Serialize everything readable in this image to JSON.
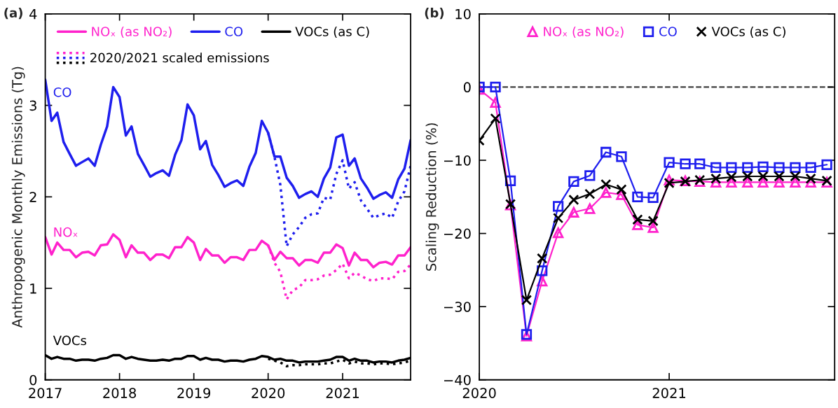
{
  "chart_data": [
    {
      "type": "line",
      "title": "(a)",
      "ylabel": "Anthropogenic Monthly Emissions (Tg)",
      "x": [
        "2017-01",
        "2017-02",
        "2017-03",
        "2017-04",
        "2017-05",
        "2017-06",
        "2017-07",
        "2017-08",
        "2017-09",
        "2017-10",
        "2017-11",
        "2017-12",
        "2018-01",
        "2018-02",
        "2018-03",
        "2018-04",
        "2018-05",
        "2018-06",
        "2018-07",
        "2018-08",
        "2018-09",
        "2018-10",
        "2018-11",
        "2018-12",
        "2019-01",
        "2019-02",
        "2019-03",
        "2019-04",
        "2019-05",
        "2019-06",
        "2019-07",
        "2019-08",
        "2019-09",
        "2019-10",
        "2019-11",
        "2019-12",
        "2020-01",
        "2020-02",
        "2020-03",
        "2020-04",
        "2020-05",
        "2020-06",
        "2020-07",
        "2020-08",
        "2020-09",
        "2020-10",
        "2020-11",
        "2020-12",
        "2021-01",
        "2021-02",
        "2021-03",
        "2021-04",
        "2021-05",
        "2021-06",
        "2021-07",
        "2021-08",
        "2021-09",
        "2021-10",
        "2021-11",
        "2021-12"
      ],
      "xlim": [
        "2017-01",
        "2021-12"
      ],
      "xticks": [
        {
          "value": "2017",
          "label": "2017"
        },
        {
          "value": "2018",
          "label": "2018"
        },
        {
          "value": "2019",
          "label": "2019"
        },
        {
          "value": "2020",
          "label": "2020"
        },
        {
          "value": "2021",
          "label": "2021"
        }
      ],
      "ylim": [
        0,
        4
      ],
      "yticks": [
        0,
        1,
        2,
        3,
        4
      ],
      "legend": "top left",
      "series": [
        {
          "name": "NOₓ (as NO₂)",
          "color": "#ff22cc",
          "line_style": "solid",
          "values": [
            1.56,
            1.37,
            1.5,
            1.42,
            1.42,
            1.34,
            1.39,
            1.4,
            1.36,
            1.47,
            1.48,
            1.59,
            1.53,
            1.34,
            1.47,
            1.39,
            1.39,
            1.31,
            1.37,
            1.37,
            1.33,
            1.45,
            1.45,
            1.56,
            1.5,
            1.31,
            1.43,
            1.36,
            1.36,
            1.28,
            1.34,
            1.34,
            1.31,
            1.42,
            1.42,
            1.52,
            1.47,
            1.31,
            1.4,
            1.33,
            1.33,
            1.25,
            1.31,
            1.31,
            1.28,
            1.39,
            1.39,
            1.48,
            1.44,
            1.25,
            1.39,
            1.31,
            1.31,
            1.23,
            1.28,
            1.29,
            1.26,
            1.36,
            1.36,
            1.45
          ]
        },
        {
          "name": "CO",
          "color": "#1e1eee",
          "line_style": "solid",
          "values": [
            3.28,
            2.83,
            2.92,
            2.6,
            2.47,
            2.34,
            2.38,
            2.42,
            2.34,
            2.57,
            2.77,
            3.2,
            3.09,
            2.67,
            2.77,
            2.47,
            2.35,
            2.22,
            2.26,
            2.29,
            2.23,
            2.46,
            2.62,
            3.01,
            2.89,
            2.52,
            2.61,
            2.35,
            2.24,
            2.11,
            2.15,
            2.18,
            2.12,
            2.33,
            2.48,
            2.83,
            2.7,
            2.44,
            2.44,
            2.21,
            2.12,
            1.99,
            2.03,
            2.06,
            2.0,
            2.2,
            2.32,
            2.65,
            2.68,
            2.34,
            2.42,
            2.2,
            2.1,
            1.98,
            2.02,
            2.05,
            1.99,
            2.19,
            2.31,
            2.62
          ]
        },
        {
          "name": "VOCs (as C)",
          "color": "#000000",
          "line_style": "solid",
          "values": [
            0.27,
            0.23,
            0.25,
            0.23,
            0.23,
            0.21,
            0.22,
            0.22,
            0.21,
            0.23,
            0.24,
            0.27,
            0.27,
            0.23,
            0.25,
            0.23,
            0.22,
            0.21,
            0.21,
            0.22,
            0.21,
            0.23,
            0.23,
            0.26,
            0.26,
            0.22,
            0.24,
            0.22,
            0.22,
            0.2,
            0.21,
            0.21,
            0.2,
            0.22,
            0.23,
            0.26,
            0.25,
            0.22,
            0.23,
            0.21,
            0.21,
            0.19,
            0.2,
            0.2,
            0.2,
            0.21,
            0.22,
            0.25,
            0.25,
            0.21,
            0.23,
            0.21,
            0.21,
            0.19,
            0.2,
            0.2,
            0.19,
            0.21,
            0.22,
            0.24
          ]
        },
        {
          "name": "2020/2021 scaled emissions",
          "color": "#ff22cc",
          "line_style": "dotted",
          "x": [
            "2020-01",
            "2020-02",
            "2020-03",
            "2020-04",
            "2020-05",
            "2020-06",
            "2020-07",
            "2020-08",
            "2020-09",
            "2020-10",
            "2020-11",
            "2020-12",
            "2021-01",
            "2021-02",
            "2021-03",
            "2021-04",
            "2021-05",
            "2021-06",
            "2021-07",
            "2021-08",
            "2021-09",
            "2021-10",
            "2021-11",
            "2021-12"
          ],
          "values": [
            1.47,
            1.28,
            1.18,
            0.88,
            0.98,
            1.01,
            1.09,
            1.09,
            1.1,
            1.14,
            1.15,
            1.2,
            1.27,
            1.11,
            1.17,
            1.14,
            1.1,
            1.08,
            1.11,
            1.11,
            1.1,
            1.18,
            1.19,
            1.26
          ]
        },
        {
          "color": "#1e1eee",
          "line_style": "dotted",
          "x": [
            "2020-01",
            "2020-02",
            "2020-03",
            "2020-04",
            "2020-05",
            "2020-06",
            "2020-07",
            "2020-08",
            "2020-09",
            "2020-10",
            "2020-11",
            "2020-12",
            "2021-01",
            "2021-02",
            "2021-03",
            "2021-04",
            "2021-05",
            "2021-06",
            "2021-07",
            "2021-08",
            "2021-09",
            "2021-10",
            "2021-11",
            "2021-12"
          ],
          "values": [
            2.7,
            2.44,
            2.13,
            1.46,
            1.59,
            1.67,
            1.77,
            1.81,
            1.82,
            1.99,
            1.97,
            2.25,
            2.4,
            2.09,
            2.16,
            1.96,
            1.87,
            1.77,
            1.8,
            1.82,
            1.77,
            1.95,
            2.06,
            2.34
          ]
        },
        {
          "color": "#000000",
          "line_style": "dotted",
          "x": [
            "2020-01",
            "2020-02",
            "2020-03",
            "2020-04",
            "2020-05",
            "2020-06",
            "2020-07",
            "2020-08",
            "2020-09",
            "2020-10",
            "2020-11",
            "2020-12",
            "2021-01",
            "2021-02",
            "2021-03",
            "2021-04",
            "2021-05",
            "2021-06",
            "2021-07",
            "2021-08",
            "2021-09",
            "2021-10",
            "2021-11",
            "2021-12"
          ],
          "values": [
            0.23,
            0.21,
            0.19,
            0.15,
            0.16,
            0.16,
            0.17,
            0.17,
            0.17,
            0.18,
            0.18,
            0.2,
            0.22,
            0.18,
            0.2,
            0.18,
            0.18,
            0.17,
            0.18,
            0.18,
            0.17,
            0.18,
            0.19,
            0.21
          ]
        }
      ],
      "annotations": [
        "NOₓ",
        "CO",
        "VOCs"
      ]
    },
    {
      "type": "line",
      "title": "(b)",
      "ylabel": "Scaling Reduction (%)",
      "x": [
        "2020-01",
        "2020-02",
        "2020-03",
        "2020-04",
        "2020-05",
        "2020-06",
        "2020-07",
        "2020-08",
        "2020-09",
        "2020-10",
        "2020-11",
        "2020-12",
        "2021-01",
        "2021-02",
        "2021-03",
        "2021-04",
        "2021-05",
        "2021-06",
        "2021-07",
        "2021-08",
        "2021-09",
        "2021-10",
        "2021-11"
      ],
      "xlim": [
        "2020-01",
        "2021-11-16"
      ],
      "xticks": [
        {
          "value": "2020",
          "label": "2020"
        },
        {
          "value": "2021",
          "label": "2021"
        }
      ],
      "ylim": [
        -40,
        10
      ],
      "yticks": [
        -40,
        -30,
        -20,
        -10,
        0,
        10
      ],
      "legend": "top",
      "ref_lines": [
        {
          "axis": "y",
          "value": 0,
          "line_style": "dashed",
          "color": "#404040"
        }
      ],
      "series": [
        {
          "name": "NOₓ (as NO₂)",
          "color": "#ff22cc",
          "marker": "triangle",
          "line_style": "solid",
          "values": [
            -0.3,
            -2.1,
            -16.1,
            -34.0,
            -26.5,
            -19.9,
            -17.1,
            -16.6,
            -14.4,
            -14.7,
            -18.8,
            -19.2,
            -12.7,
            -12.8,
            -12.9,
            -13.0,
            -13.0,
            -13.0,
            -13.0,
            -13.0,
            -13.0,
            -13.0,
            -13.0
          ]
        },
        {
          "name": "CO",
          "color": "#1e1eee",
          "marker": "square",
          "line_style": "solid",
          "values": [
            0.0,
            0.0,
            -12.8,
            -33.8,
            -25.1,
            -16.3,
            -12.9,
            -12.1,
            -8.9,
            -9.5,
            -15.0,
            -15.1,
            -10.3,
            -10.5,
            -10.5,
            -11.0,
            -11.0,
            -11.0,
            -10.9,
            -11.0,
            -11.0,
            -11.0,
            -10.6
          ]
        },
        {
          "name": "VOCs (as C)",
          "color": "#000000",
          "marker": "cross",
          "line_style": "solid",
          "values": [
            -7.3,
            -4.3,
            -16.0,
            -29.1,
            -23.4,
            -17.9,
            -15.4,
            -14.6,
            -13.3,
            -14.0,
            -18.1,
            -18.3,
            -13.1,
            -12.9,
            -12.7,
            -12.5,
            -12.3,
            -12.2,
            -12.2,
            -12.2,
            -12.2,
            -12.5,
            -12.8
          ]
        }
      ]
    }
  ]
}
